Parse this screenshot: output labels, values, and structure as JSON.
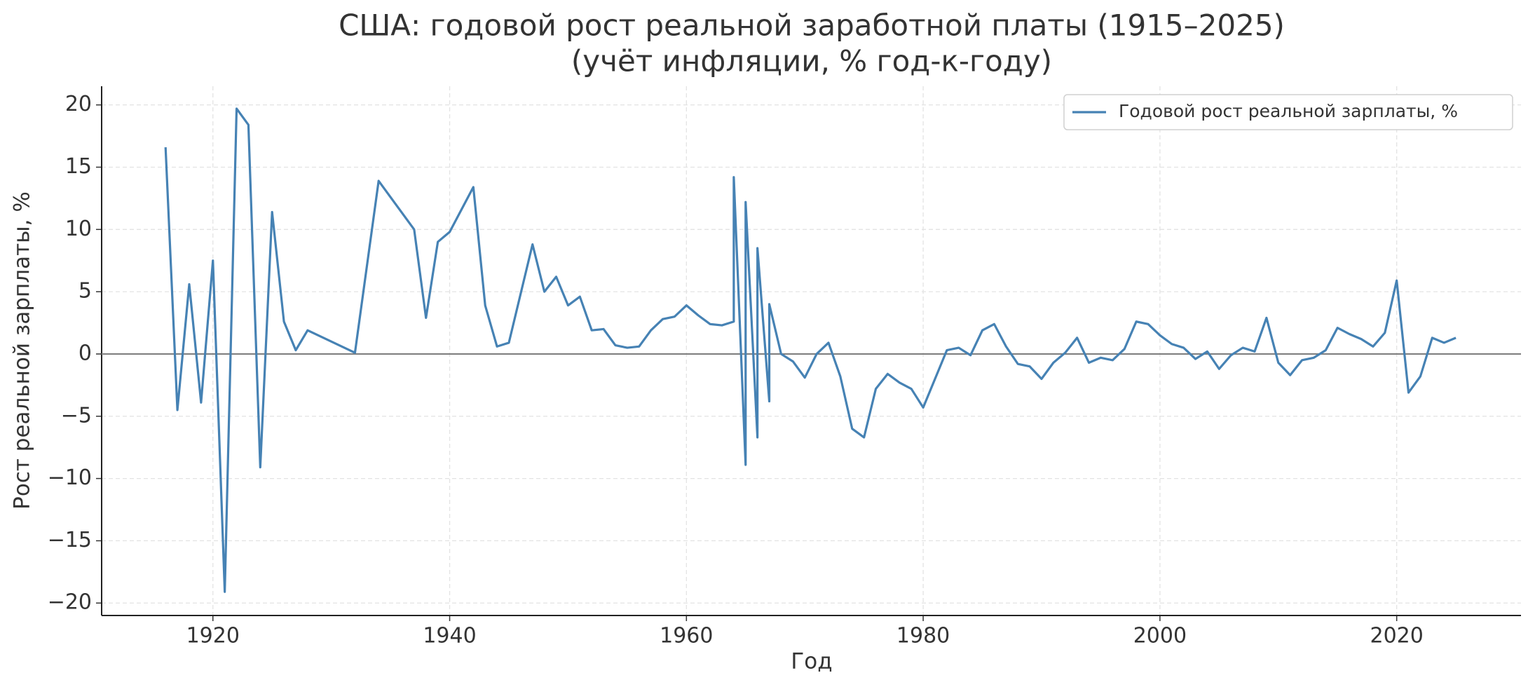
{
  "chart_data": {
    "type": "line",
    "title": "США: годовой рост реальной заработной платы (1915–2025)",
    "subtitle": "(учёт инфляции, % год-к-году)",
    "x_label": "Год",
    "y_label": "Рост реальной зарплаты, %",
    "x": [
      1916,
      1917,
      1918,
      1919,
      1920,
      1921,
      1922,
      1923,
      1924,
      1925,
      1926,
      1927,
      1928,
      1932,
      1934,
      1937,
      1938,
      1939,
      1940,
      1941,
      1942,
      1943,
      1944,
      1945,
      1947,
      1948,
      1949,
      1950,
      1951,
      1952,
      1953,
      1954,
      1955,
      1956,
      1957,
      1958,
      1959,
      1960,
      1961,
      1962,
      1963,
      1964,
      1964,
      1965,
      1965,
      1966,
      1966,
      1967,
      1967,
      1968,
      1969,
      1970,
      1971,
      1972,
      1973,
      1974,
      1975,
      1976,
      1977,
      1978,
      1979,
      1980,
      1981,
      1982,
      1983,
      1984,
      1985,
      1986,
      1987,
      1988,
      1989,
      1990,
      1991,
      1992,
      1993,
      1994,
      1995,
      1996,
      1997,
      1998,
      1999,
      2000,
      2001,
      2002,
      2003,
      2004,
      2005,
      2006,
      2007,
      2008,
      2009,
      2010,
      2011,
      2012,
      2013,
      2014,
      2015,
      2016,
      2017,
      2018,
      2019,
      2020,
      2021,
      2022,
      2023,
      2024,
      2025
    ],
    "series": [
      {
        "name": "Годовой рост реальной зарплаты, %",
        "color": "#4682b4",
        "values": [
          16.6,
          -4.5,
          5.6,
          -3.9,
          7.5,
          -19.1,
          19.7,
          18.4,
          -9.1,
          11.4,
          2.6,
          0.3,
          1.9,
          0.1,
          13.9,
          10.0,
          2.9,
          9.0,
          9.8,
          11.6,
          13.4,
          3.9,
          0.6,
          0.9,
          8.8,
          5.0,
          6.2,
          3.9,
          4.6,
          1.9,
          2.0,
          0.7,
          0.5,
          0.6,
          1.9,
          2.8,
          3.0,
          3.9,
          3.1,
          2.4,
          2.3,
          2.6,
          14.2,
          -8.9,
          12.2,
          -6.7,
          8.5,
          -3.8,
          4.0,
          0.0,
          -0.6,
          -1.9,
          0.0,
          0.9,
          -1.8,
          -6.0,
          -6.7,
          -2.8,
          -1.6,
          -2.3,
          -2.8,
          -4.3,
          -2.0,
          0.3,
          0.5,
          -0.1,
          1.9,
          2.4,
          0.6,
          -0.8,
          -1.0,
          -2.0,
          -0.7,
          0.1,
          1.3,
          -0.7,
          -0.3,
          -0.5,
          0.4,
          2.6,
          2.4,
          1.5,
          0.8,
          0.5,
          -0.4,
          0.2,
          -1.2,
          -0.1,
          0.5,
          0.2,
          2.9,
          -0.7,
          -1.7,
          -0.5,
          -0.3,
          0.3,
          2.1,
          1.6,
          1.2,
          0.6,
          1.7,
          5.9,
          -3.1,
          -1.8,
          1.3,
          0.9,
          1.3
        ]
      }
    ],
    "xlim": [
      1910.6,
      2030.5
    ],
    "ylim": [
      -21.0,
      21.5
    ],
    "xticks": [
      1920,
      1940,
      1960,
      1980,
      2000,
      2020
    ],
    "yticks": [
      {
        "value": -20,
        "label": "−20"
      },
      {
        "value": -15,
        "label": "−15"
      },
      {
        "value": -10,
        "label": "−10"
      },
      {
        "value": -5,
        "label": "−5"
      },
      0,
      5,
      10,
      15,
      20
    ],
    "reference_line": 0,
    "reference_color": "#808080",
    "grid": true,
    "legend": "upper right"
  }
}
